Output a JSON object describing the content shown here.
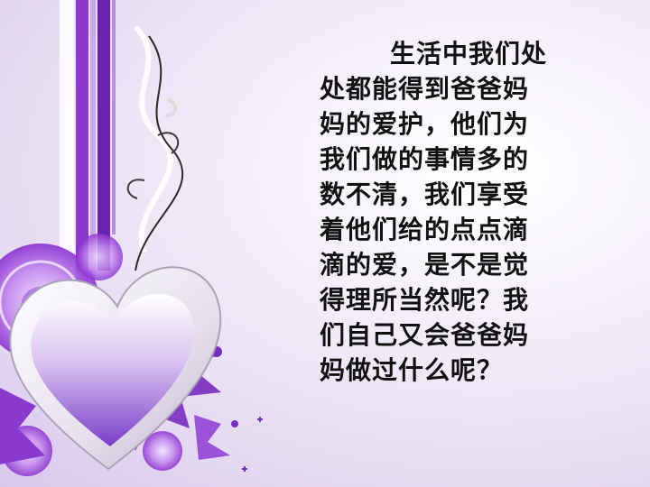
{
  "slide": {
    "lines": [
      "生活中我们处",
      "处都能得到爸爸妈",
      "妈的爱护，他们为",
      "我们做的事情多的",
      "数不清，我们享受",
      "着他们给的点点滴",
      "滴的爱，是不是觉",
      "得理所当然呢？我",
      "们自己又会爸爸妈",
      "妈做过什么呢？"
    ]
  },
  "colors": {
    "background": "#ede5f6",
    "accent_purple": "#7a2bc0",
    "light_purple": "#c9a8e8",
    "text": "#111111"
  }
}
